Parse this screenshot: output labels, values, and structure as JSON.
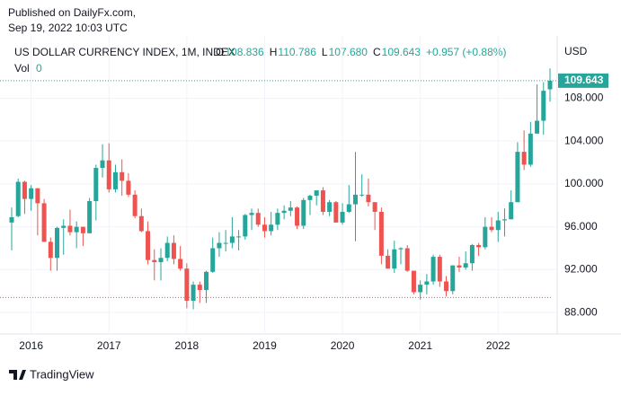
{
  "published": {
    "line1": "Published on DailyFx.com,",
    "line2": "Sep 19, 2022 10:03 UTC"
  },
  "header": {
    "symbol": "US DOLLAR CURRENCY INDEX, 1M, INDEX",
    "o_label": "O",
    "o": "108.836",
    "h_label": "H",
    "h": "110.786",
    "l_label": "L",
    "l": "107.680",
    "c_label": "C",
    "c": "109.643",
    "change": "+0.957 (+0.88%)",
    "vol_label": "Vol",
    "vol": "0"
  },
  "currency": "USD",
  "last_price_label": "109.643",
  "brand": "TradingView",
  "chart_data": {
    "type": "candlestick",
    "categories": [
      null,
      null,
      null,
      "2016",
      null,
      null,
      null,
      null,
      null,
      null,
      null,
      null,
      null,
      null,
      null,
      "2017",
      null,
      null,
      null,
      null,
      null,
      null,
      null,
      null,
      null,
      null,
      null,
      "2018",
      null,
      null,
      null,
      null,
      null,
      null,
      null,
      null,
      null,
      null,
      null,
      "2019",
      null,
      null,
      null,
      null,
      null,
      null,
      null,
      null,
      null,
      null,
      null,
      "2020",
      null,
      null,
      null,
      null,
      null,
      null,
      null,
      null,
      null,
      null,
      null,
      "2021",
      null,
      null,
      null,
      null,
      null,
      null,
      null,
      null,
      null,
      null,
      null,
      "2022",
      null,
      null,
      null,
      null,
      null,
      null,
      null,
      null
    ],
    "open": [
      96.4,
      97.0,
      100.2,
      98.6,
      99.6,
      98.2,
      94.6,
      93.1,
      95.9,
      96.1,
      95.5,
      96.0,
      95.4,
      98.4,
      101.5,
      102.2,
      99.5,
      101.1,
      100.3,
      99.0,
      97.0,
      95.6,
      92.9,
      92.7,
      93.1,
      94.5,
      93.0,
      92.1,
      89.1,
      90.6,
      90.1,
      91.8,
      94.0,
      94.5,
      94.5,
      95.1,
      95.1,
      97.1,
      97.3,
      96.2,
      95.6,
      96.2,
      97.3,
      97.5,
      97.8,
      96.1,
      98.5,
      98.9,
      99.4,
      97.4,
      98.3,
      96.4,
      97.4,
      98.1,
      99.0,
      99.0,
      98.3,
      97.4,
      93.3,
      92.1,
      93.9,
      94.0,
      91.9,
      89.9,
      90.6,
      90.9,
      93.2,
      90.9,
      90.0,
      92.4,
      92.2,
      92.6,
      94.3,
      94.1,
      96.0,
      95.7,
      96.6,
      96.7,
      98.3,
      103.0,
      101.8,
      104.7,
      105.9,
      108.836
    ],
    "high": [
      97.8,
      100.5,
      100.3,
      99.9,
      99.6,
      98.6,
      95.0,
      96.0,
      96.7,
      97.6,
      96.5,
      96.0,
      98.7,
      101.8,
      103.7,
      103.8,
      101.8,
      102.3,
      101.0,
      99.4,
      97.7,
      96.5,
      93.9,
      94.0,
      95.1,
      95.2,
      94.2,
      92.6,
      90.9,
      90.9,
      91.9,
      95.0,
      95.5,
      95.7,
      96.9,
      95.7,
      97.2,
      97.7,
      97.7,
      96.9,
      97.4,
      97.7,
      98.0,
      98.4,
      97.9,
      98.7,
      99.0,
      99.4,
      99.7,
      98.5,
      98.4,
      98.2,
      99.9,
      102.99,
      100.9,
      100.5,
      98.3,
      97.8,
      93.9,
      94.7,
      94.1,
      94.3,
      91.9,
      91.0,
      91.6,
      93.4,
      93.4,
      91.4,
      92.4,
      93.2,
      93.7,
      94.4,
      94.5,
      96.9,
      96.9,
      97.4,
      97.7,
      99.4,
      103.9,
      105.0,
      105.8,
      109.3,
      109.5,
      110.786
    ],
    "low": [
      93.8,
      96.9,
      97.2,
      97.5,
      95.2,
      94.6,
      91.9,
      91.9,
      93.4,
      95.2,
      94.0,
      94.2,
      95.4,
      96.6,
      100.6,
      99.2,
      99.2,
      98.9,
      98.8,
      96.8,
      95.5,
      92.5,
      91.0,
      90.99,
      92.8,
      92.5,
      91.9,
      88.4,
      88.3,
      88.9,
      88.9,
      91.7,
      93.2,
      93.7,
      94.0,
      93.8,
      94.8,
      95.7,
      96.0,
      95.0,
      95.2,
      95.7,
      96.7,
      97.0,
      95.8,
      95.8,
      97.1,
      98.0,
      97.1,
      97.0,
      96.4,
      96.2,
      97.3,
      94.65,
      98.8,
      97.9,
      95.7,
      92.5,
      92.1,
      91.7,
      92.5,
      91.8,
      89.7,
      89.2,
      89.7,
      90.6,
      90.4,
      89.5,
      89.7,
      91.8,
      92.0,
      91.9,
      93.3,
      93.9,
      95.5,
      94.6,
      95.1,
      96.7,
      98.3,
      101.3,
      101.6,
      104.7,
      104.6,
      107.68
    ],
    "close": [
      96.9,
      100.2,
      98.6,
      99.6,
      98.2,
      94.6,
      93.1,
      95.9,
      96.1,
      95.5,
      96.0,
      95.4,
      98.4,
      101.5,
      102.2,
      99.5,
      101.1,
      100.3,
      99.0,
      97.0,
      95.6,
      92.9,
      92.7,
      93.1,
      94.5,
      93.0,
      92.1,
      89.1,
      90.6,
      90.1,
      91.8,
      94.0,
      94.5,
      94.5,
      95.1,
      95.1,
      97.1,
      97.3,
      96.2,
      95.6,
      96.2,
      97.3,
      97.5,
      97.8,
      96.1,
      98.5,
      98.9,
      99.4,
      97.4,
      98.3,
      96.4,
      97.4,
      98.1,
      99.0,
      99.0,
      98.3,
      97.4,
      93.3,
      92.1,
      93.9,
      94.0,
      91.9,
      89.9,
      90.6,
      90.9,
      93.2,
      90.9,
      90.0,
      92.4,
      92.2,
      92.6,
      94.3,
      94.1,
      96.0,
      95.7,
      96.6,
      96.7,
      98.3,
      103.0,
      101.8,
      104.7,
      105.9,
      108.7,
      109.643
    ],
    "up_color": "#26a69a",
    "down_color": "#ef5350",
    "hline": 89.4,
    "hline_color": "#ef5350",
    "ylim": [
      86,
      113.4
    ],
    "yticks": [
      {
        "value": 88,
        "label": "88.000"
      },
      {
        "value": 92,
        "label": "92.000"
      },
      {
        "value": 96,
        "label": "96.000"
      },
      {
        "value": 100,
        "label": "100.000"
      },
      {
        "value": 104,
        "label": "104.000"
      },
      {
        "value": 108,
        "label": "108.000"
      }
    ],
    "grid": true
  }
}
